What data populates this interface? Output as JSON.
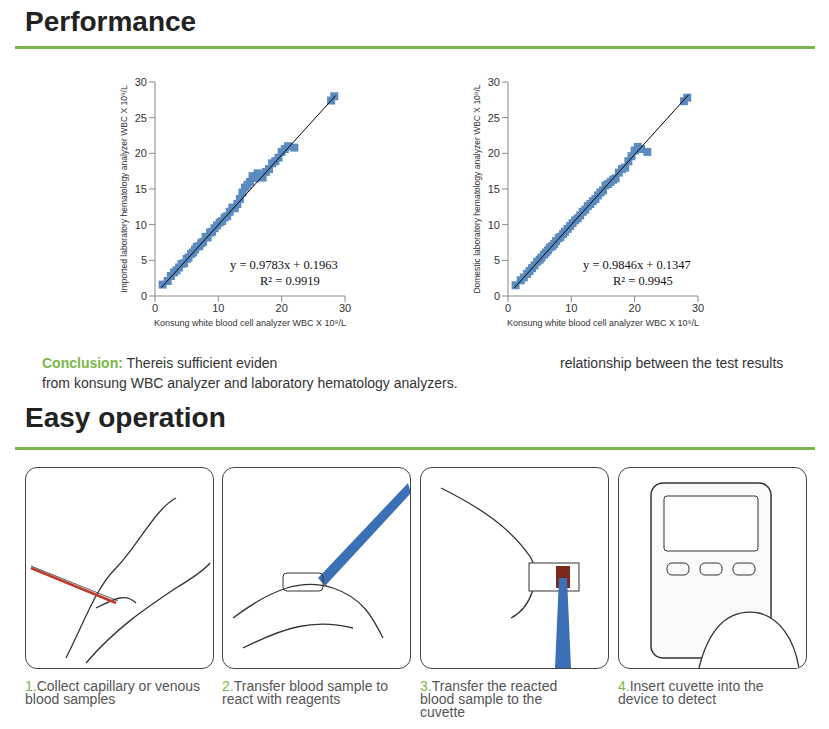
{
  "header": {
    "title": "Performance"
  },
  "chart_data": [
    {
      "type": "scatter",
      "x_label": "Konsung white blood cell analyzer WBC X 10⁹/L",
      "y_label": "Imported laboratory hematology analyzer   WBC X 10⁹/L",
      "x": [
        1.2,
        2,
        2.5,
        3,
        3.4,
        3.8,
        4.2,
        4.6,
        5,
        5.3,
        5.7,
        6,
        6.3,
        6.6,
        7,
        7.3,
        7.6,
        8,
        8.3,
        8.7,
        9,
        9.4,
        9.8,
        10.2,
        10.6,
        11,
        11.4,
        11.8,
        12.2,
        12.6,
        13,
        13.4,
        13.8,
        14.2,
        14.6,
        15,
        15.4,
        15.8,
        16.2,
        16.6,
        17,
        17.5,
        18,
        18.5,
        19,
        19.5,
        20,
        20.5,
        21,
        22,
        27.8,
        28.3
      ],
      "values": [
        1.6,
        2.1,
        2.8,
        3.3,
        3.6,
        4.0,
        4.5,
        4.6,
        5.2,
        5.4,
        5.9,
        6.1,
        6.5,
        6.9,
        7.0,
        7.4,
        7.6,
        8.3,
        8.2,
        8.9,
        9.0,
        9.5,
        9.9,
        10.3,
        10.5,
        11.0,
        11.2,
        11.8,
        12.4,
        12.3,
        12.9,
        13.6,
        14.5,
        15.2,
        15.6,
        16.0,
        16.8,
        16.5,
        17.2,
        17.0,
        16.6,
        17.4,
        17.8,
        18.6,
        18.9,
        19.4,
        20.2,
        20.6,
        21.0,
        20.8,
        27.4,
        28.0
      ],
      "trend_line": {
        "x": [
          1,
          28.5
        ],
        "values": [
          1.17,
          28.08
        ]
      },
      "annotations": [
        "y = 0.9783x + 0.1963",
        "R² = 0.9919"
      ],
      "xlim": [
        0,
        30
      ],
      "xticks": [
        0,
        10,
        20,
        30
      ],
      "ylim": [
        0,
        30
      ],
      "yticks": [
        0,
        5,
        10,
        15,
        20,
        25,
        30
      ],
      "color": "#5b8bbf",
      "marker": "square"
    },
    {
      "type": "scatter",
      "x_label": "Konsung white blood cell analyzer WBC X 10⁹/L",
      "y_label": "Domestic laboratory hematology analyzer   WBC X 10⁹/L",
      "x": [
        1.2,
        2,
        2.5,
        3,
        3.4,
        3.8,
        4.2,
        4.6,
        5,
        5.3,
        5.7,
        6,
        6.3,
        6.6,
        7,
        7.3,
        7.6,
        8,
        8.3,
        8.7,
        9,
        9.4,
        9.8,
        10.2,
        10.6,
        11,
        11.4,
        11.8,
        12.2,
        12.6,
        13,
        13.4,
        13.8,
        14.2,
        14.6,
        15,
        15.4,
        15.8,
        16.2,
        16.6,
        17,
        17.5,
        18,
        18.5,
        19,
        19.5,
        20,
        20.5,
        21,
        22,
        27.8,
        28.3
      ],
      "values": [
        1.5,
        2.2,
        2.6,
        3.1,
        3.5,
        3.9,
        4.3,
        4.8,
        5.1,
        5.4,
        5.8,
        6.1,
        6.4,
        6.8,
        7.0,
        7.3,
        7.7,
        8.1,
        8.3,
        8.7,
        9.0,
        9.4,
        9.8,
        10.2,
        10.6,
        10.9,
        11.3,
        11.8,
        12.1,
        12.6,
        12.9,
        13.3,
        13.6,
        14.1,
        14.5,
        14.8,
        15.5,
        15.7,
        16.0,
        16.3,
        16.5,
        17.3,
        17.8,
        18.0,
        18.9,
        19.6,
        20.4,
        20.9,
        20.6,
        20.2,
        27.3,
        27.8
      ],
      "trend_line": {
        "x": [
          1,
          28.5
        ],
        "values": [
          1.13,
          28.2
        ]
      },
      "annotations": [
        "y = 0.9846x + 0.1347",
        "R² = 0.9945"
      ],
      "xlim": [
        0,
        30
      ],
      "xticks": [
        0,
        10,
        20,
        30
      ],
      "ylim": [
        0,
        30
      ],
      "yticks": [
        0,
        5,
        10,
        15,
        20,
        25,
        30
      ],
      "color": "#5b8bbf",
      "marker": "square"
    }
  ],
  "conclusion": {
    "label": "Conclusion:",
    "line1": [
      "Thereis sufficient eviden",
      "relationship between the test results"
    ],
    "line2": "from konsung WBC analyzer and laboratory hematology analyzers."
  },
  "operation": {
    "title": "Easy operation",
    "steps": [
      {
        "number": "1.",
        "text": "Collect capillary or venous blood samples"
      },
      {
        "number": "2.",
        "text": "Transfer blood sample to react with reagents"
      },
      {
        "number": "3.",
        "text": "Transfer the reacted blood sample to the cuvette"
      },
      {
        "number": "4.",
        "text": "Insert cuvette into the device to detect"
      }
    ]
  }
}
